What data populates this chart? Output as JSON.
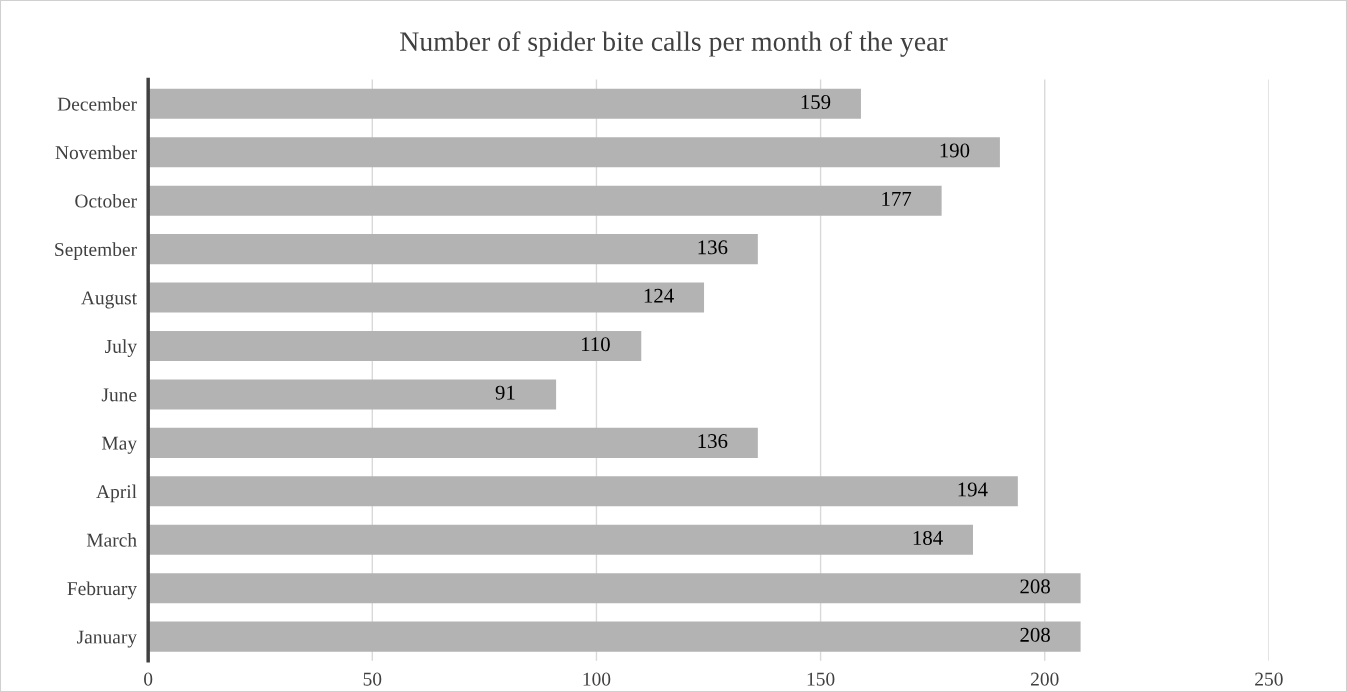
{
  "chart_data": {
    "type": "bar",
    "orientation": "horizontal",
    "title": "Number of spider bite calls per month of the year",
    "categories": [
      "December",
      "November",
      "October",
      "September",
      "August",
      "July",
      "June",
      "May",
      "April",
      "March",
      "February",
      "January"
    ],
    "values": [
      159,
      190,
      177,
      136,
      124,
      110,
      91,
      136,
      194,
      184,
      208,
      208
    ],
    "color": "#b3b3b3",
    "data_labels": true,
    "xlim": [
      0,
      250
    ],
    "xticks": [
      0,
      50,
      100,
      150,
      200,
      250
    ],
    "grid": "x",
    "legend": false
  }
}
